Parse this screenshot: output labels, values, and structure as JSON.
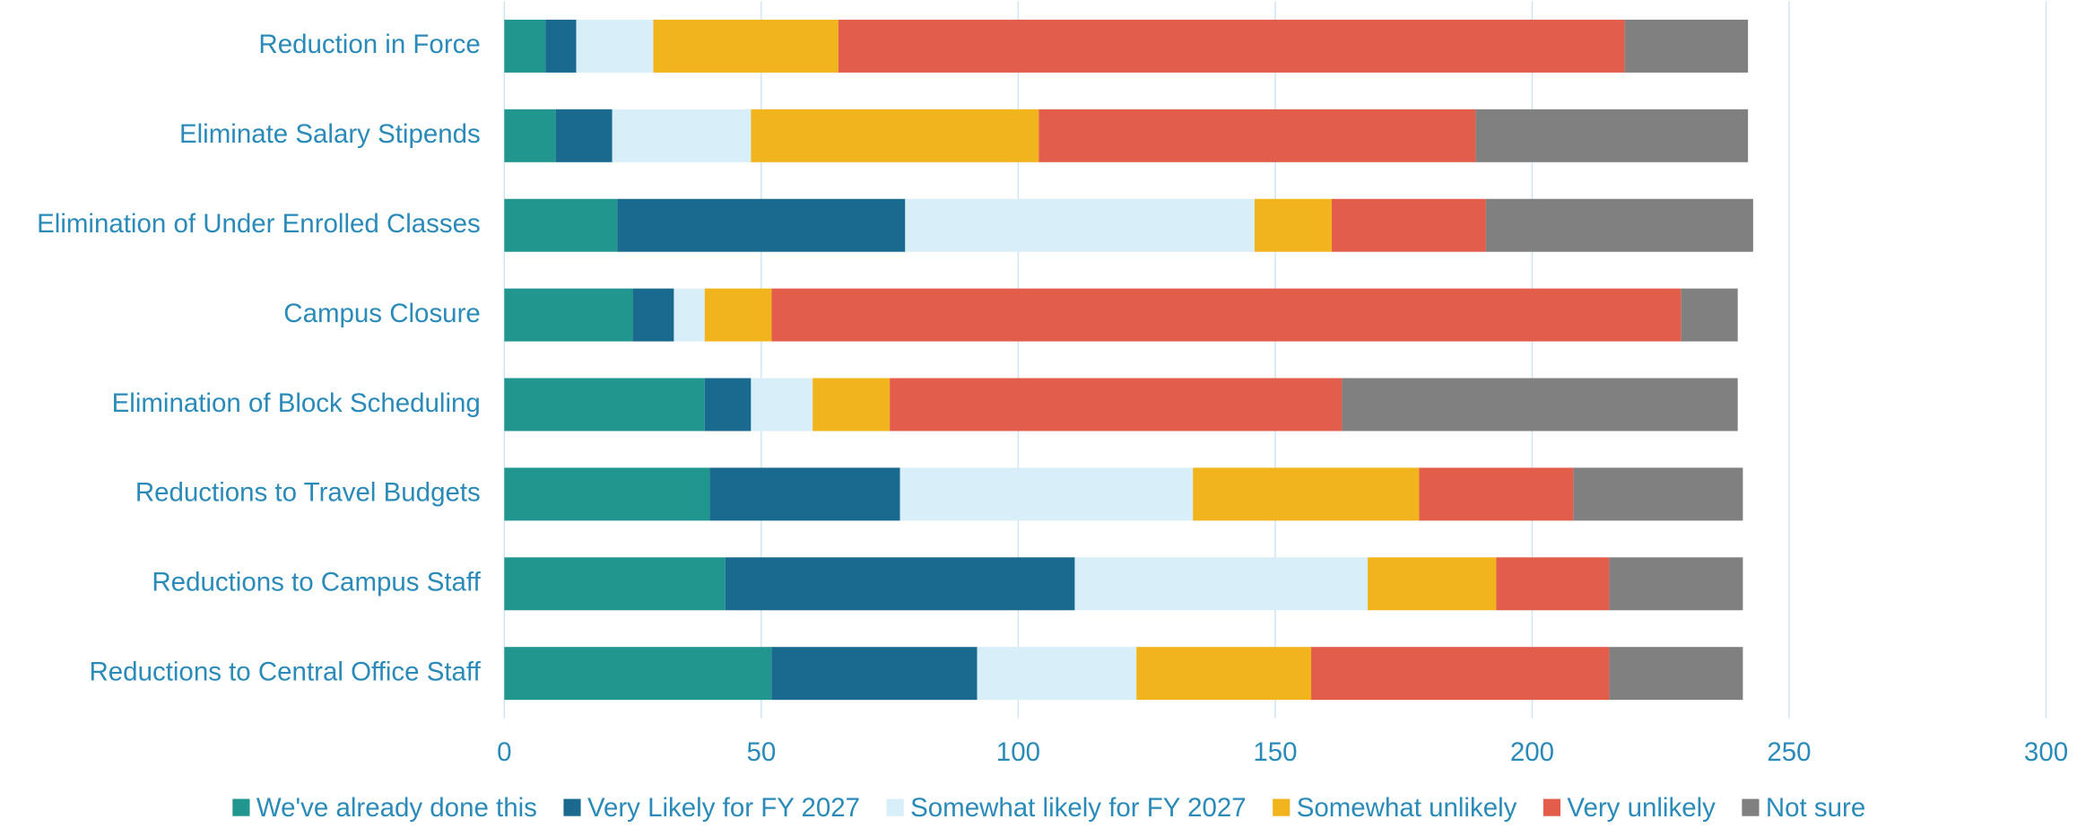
{
  "chart_data": {
    "type": "stacked-bar-horizontal",
    "categories": [
      "Reduction in Force",
      "Eliminate Salary Stipends",
      "Elimination of Under Enrolled Classes",
      "Campus Closure",
      "Elimination of Block Scheduling",
      "Reductions to Travel Budgets",
      "Reductions to Campus Staff",
      "Reductions to Central Office Staff"
    ],
    "series": [
      {
        "name": "We've already done this",
        "color": "#21968f",
        "values": [
          8,
          10,
          22,
          25,
          39,
          40,
          43,
          52
        ]
      },
      {
        "name": "Very Likely for FY 2027",
        "color": "#1a6a90",
        "values": [
          6,
          11,
          56,
          8,
          9,
          37,
          68,
          40
        ]
      },
      {
        "name": "Somewhat likely for FY 2027",
        "color": "#d8eef8",
        "values": [
          15,
          27,
          68,
          6,
          12,
          57,
          57,
          31
        ]
      },
      {
        "name": "Somewhat unlikely",
        "color": "#f2b41d",
        "values": [
          36,
          56,
          15,
          13,
          15,
          44,
          25,
          34
        ]
      },
      {
        "name": "Very unlikely",
        "color": "#e35d4b",
        "values": [
          153,
          85,
          30,
          177,
          88,
          30,
          22,
          58
        ]
      },
      {
        "name": "Not sure",
        "color": "#808080",
        "values": [
          24,
          53,
          52,
          11,
          77,
          33,
          26,
          26
        ]
      }
    ],
    "xlim": [
      0,
      300
    ],
    "xticks": [
      0,
      50,
      100,
      150,
      200,
      250,
      300
    ],
    "grid": true,
    "legend": "bottom"
  }
}
